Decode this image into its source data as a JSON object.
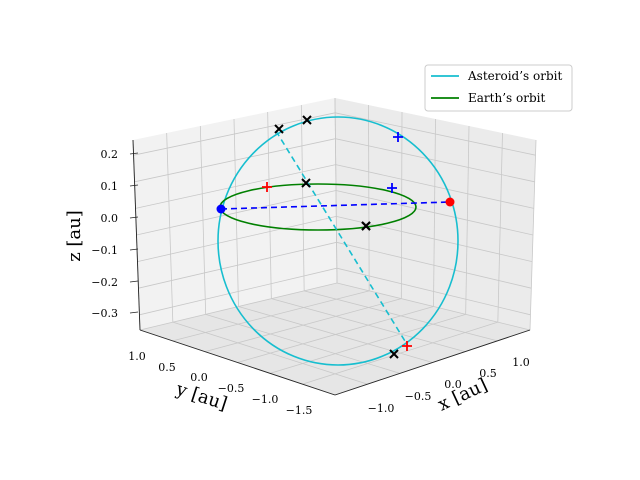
{
  "chart_data": {
    "type": "line",
    "projection": "3d",
    "title": "",
    "axes": {
      "x": {
        "label": "x [au]",
        "ticks": [
          "−1.0",
          "−0.5",
          "0.0",
          "0.5",
          "1.0"
        ]
      },
      "y": {
        "label": "y [au]",
        "ticks": [
          "1.0",
          "0.5",
          "0.0",
          "−0.5",
          "−1.0",
          "−1.5"
        ]
      },
      "z": {
        "label": "z [au]",
        "ticks": [
          "0.2",
          "0.1",
          "0.0",
          "−0.1",
          "−0.2",
          "−0.3"
        ]
      }
    },
    "grid": true,
    "legend": {
      "position": "top-right",
      "entries": [
        {
          "label": "Asteroid’s orbit",
          "color": "#17becf"
        },
        {
          "label": "Earth’s orbit",
          "color": "#008000"
        }
      ]
    },
    "series": [
      {
        "name": "Asteroid’s orbit",
        "style": "solid",
        "color": "#17becf"
      },
      {
        "name": "Earth’s orbit",
        "style": "solid",
        "color": "#008000"
      }
    ],
    "line_of_apsides_asteroid": {
      "style": "dashed",
      "color": "#17becf"
    },
    "line_of_apsides_earth": {
      "style": "dashed",
      "color": "#0000ff"
    },
    "points": {
      "earth_positions": {
        "marker": "circle",
        "color": "#0000ff"
      },
      "asteroid_positions": {
        "marker": "circle",
        "color": "#ff0000"
      },
      "x_markers": {
        "marker": "x",
        "color": "#000000",
        "count": 6
      },
      "plus_red": {
        "marker": "+",
        "color": "#ff0000",
        "count": 2
      },
      "plus_blue": {
        "marker": "+",
        "color": "#0000ff",
        "count": 2
      }
    }
  }
}
